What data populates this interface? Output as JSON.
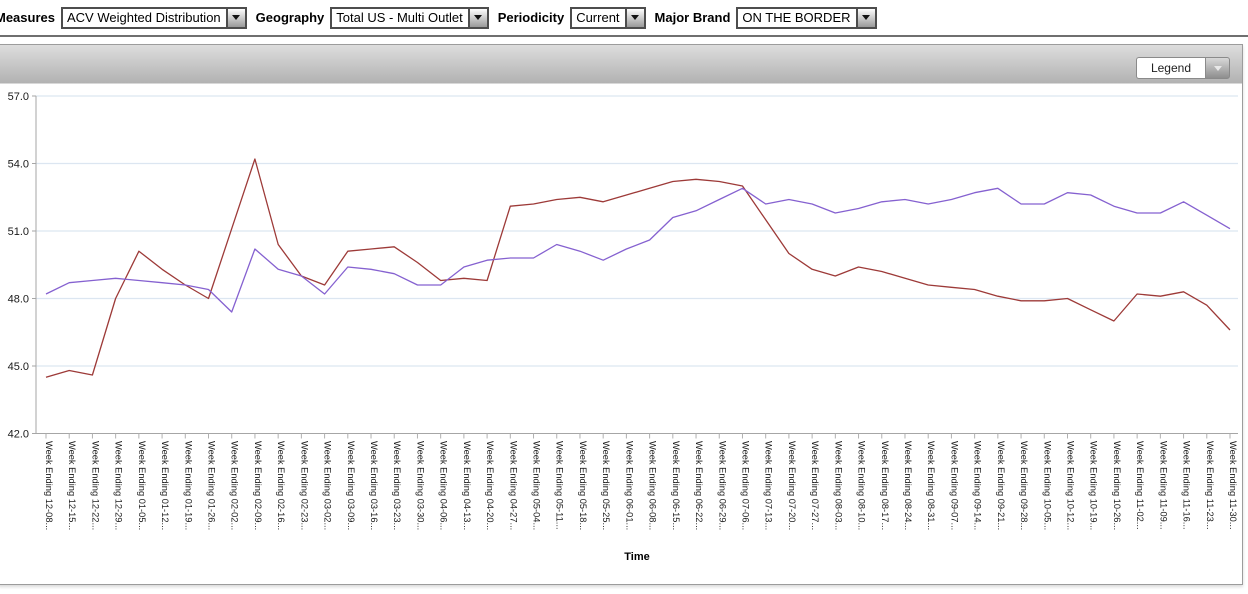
{
  "toolbar": {
    "controls": [
      {
        "label": "Measures",
        "value": "ACV Weighted Distribution"
      },
      {
        "label": "Geography",
        "value": "Total US - Multi Outlet"
      },
      {
        "label": "Periodicity",
        "value": "Current"
      },
      {
        "label": "Major Brand",
        "value": "ON THE BORDER"
      }
    ]
  },
  "panel": {
    "legend_button_label": "Legend",
    "legend_state": "collapsed"
  },
  "chart_data": {
    "type": "line",
    "title": "",
    "xlabel": "Time",
    "ylabel": "",
    "ylim": [
      42.0,
      57.0
    ],
    "yticks": [
      57.0,
      54.0,
      51.0,
      48.0,
      45.0,
      42.0
    ],
    "ytick_labels": [
      "57.0",
      "54.0",
      "51.0",
      "48.0",
      "45.0",
      "42.0"
    ],
    "grid": "horizontal",
    "gridline_color": "#dce6f1",
    "axis_color": "#a6a6a6",
    "legend_position": "collapsed-top-right-button",
    "x_label_prefix": "Week Ending ",
    "x_label_suffix": "...",
    "categories": [
      "12-08",
      "12-15",
      "12-22",
      "12-29",
      "01-05",
      "01-12",
      "01-19",
      "01-26",
      "02-02",
      "02-09",
      "02-16",
      "02-23",
      "03-02",
      "03-09",
      "03-16",
      "03-23",
      "03-30",
      "04-06",
      "04-13",
      "04-20",
      "04-27",
      "05-04",
      "05-11",
      "05-18",
      "05-25",
      "06-01",
      "06-08",
      "06-15",
      "06-22",
      "06-29",
      "07-06",
      "07-13",
      "07-20",
      "07-27",
      "08-03",
      "08-10",
      "08-17",
      "08-24",
      "08-31",
      "09-07",
      "09-14",
      "09-21",
      "09-28",
      "10-05",
      "10-12",
      "10-19",
      "10-26",
      "11-02",
      "11-09",
      "11-16",
      "11-23",
      "11-30"
    ],
    "series": [
      {
        "name": "red-series",
        "color": "#9d3a38",
        "values": [
          44.5,
          44.8,
          44.6,
          48.0,
          50.1,
          49.3,
          48.6,
          48.0,
          51.1,
          54.2,
          50.4,
          49.0,
          48.6,
          50.1,
          50.2,
          50.3,
          49.6,
          48.8,
          48.9,
          48.8,
          52.1,
          52.2,
          52.4,
          52.5,
          52.3,
          52.6,
          52.9,
          53.2,
          53.3,
          53.2,
          53.0,
          51.5,
          50.0,
          49.3,
          49.0,
          49.4,
          49.2,
          48.9,
          48.6,
          48.5,
          48.4,
          48.1,
          47.9,
          47.9,
          48.0,
          47.5,
          47.0,
          48.2,
          48.1,
          48.3,
          47.7,
          46.6
        ]
      },
      {
        "name": "purple-series",
        "color": "#8561d0",
        "values": [
          48.2,
          48.7,
          48.8,
          48.9,
          48.8,
          48.7,
          48.6,
          48.4,
          47.4,
          50.2,
          49.3,
          49.0,
          48.2,
          49.4,
          49.3,
          49.1,
          48.6,
          48.6,
          49.4,
          49.7,
          49.8,
          49.8,
          50.4,
          50.1,
          49.7,
          50.2,
          50.6,
          51.6,
          51.9,
          52.4,
          52.9,
          52.2,
          52.4,
          52.2,
          51.8,
          52.0,
          52.3,
          52.4,
          52.2,
          52.4,
          52.7,
          52.9,
          52.2,
          52.2,
          52.7,
          52.6,
          52.1,
          51.8,
          51.8,
          52.3,
          51.7,
          51.1
        ]
      }
    ]
  }
}
